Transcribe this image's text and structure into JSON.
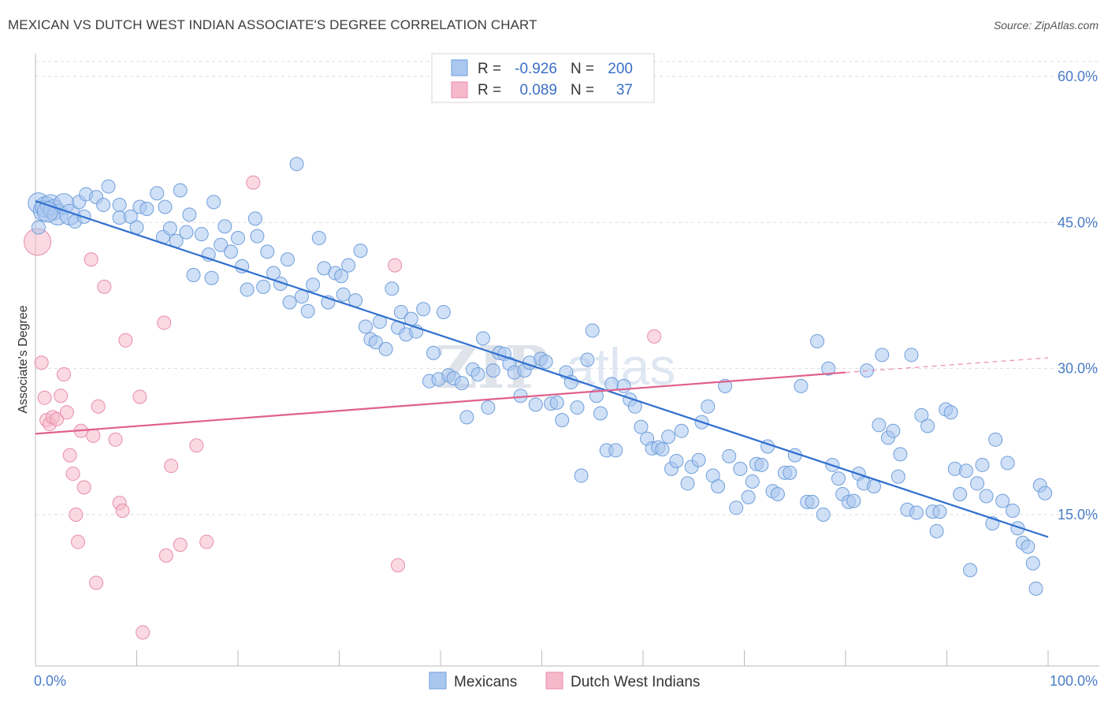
{
  "title": "MEXICAN VS DUTCH WEST INDIAN ASSOCIATE'S DEGREE CORRELATION CHART",
  "source": "Source: ZipAtlas.com",
  "colors": {
    "blue_fill": "#a9c7ef",
    "blue_stroke": "#6f9fdc",
    "blue_line": "#2f6fcf",
    "pink_fill": "#f6b9cb",
    "pink_stroke": "#e98cab",
    "pink_line": "#e0608c",
    "axis_text": "#4a7cc9",
    "grid": "#dddddd"
  },
  "legend_top": {
    "rows": [
      {
        "r_label": "R =",
        "r_value": "-0.926",
        "n_label": "N =",
        "n_value": "200"
      },
      {
        "r_label": "R =",
        "r_value": "0.089",
        "n_label": "N =",
        "n_value": "37"
      }
    ]
  },
  "legend_bottom": [
    "Mexicans",
    "Dutch West Indians"
  ],
  "watermark": {
    "a": "ZIP",
    "b": "atlas"
  },
  "chart_data": {
    "type": "scatter",
    "xlabel": "",
    "ylabel": "Associate's Degree",
    "xlim": [
      0,
      100
    ],
    "ylim": [
      0,
      64
    ],
    "x_tick_labels": [
      "0.0%",
      "100.0%"
    ],
    "y_ticks": [
      15,
      30,
      45,
      60
    ],
    "y_tick_labels": [
      "15.0%",
      "30.0%",
      "45.0%",
      "60.0%"
    ],
    "grid": "horizontal dashed",
    "series": [
      {
        "name": "Mexicans",
        "trend": {
          "x0": 0,
          "y0": 47.2,
          "x1": 100,
          "y1": 12.7
        },
        "points": [
          [
            0.3,
            47.0
          ],
          [
            0.8,
            46.2
          ],
          [
            1.0,
            46.6
          ],
          [
            1.5,
            46.8
          ],
          [
            1.8,
            46.3
          ],
          [
            2.2,
            45.8
          ],
          [
            2.8,
            46.9
          ],
          [
            3.4,
            45.8
          ],
          [
            3.9,
            45.1
          ],
          [
            4.3,
            47.1
          ],
          [
            4.8,
            45.6
          ],
          [
            5.0,
            47.9
          ],
          [
            6.0,
            47.6
          ],
          [
            6.7,
            46.8
          ],
          [
            7.2,
            48.7
          ],
          [
            8.3,
            46.8
          ],
          [
            8.3,
            45.5
          ],
          [
            9.4,
            45.6
          ],
          [
            10.0,
            44.5
          ],
          [
            10.3,
            46.6
          ],
          [
            11.0,
            46.4
          ],
          [
            12.0,
            48.0
          ],
          [
            12.6,
            43.5
          ],
          [
            12.8,
            46.6
          ],
          [
            13.3,
            44.4
          ],
          [
            13.9,
            43.1
          ],
          [
            14.3,
            48.3
          ],
          [
            14.9,
            44.0
          ],
          [
            15.2,
            45.8
          ],
          [
            15.6,
            39.6
          ],
          [
            16.4,
            43.8
          ],
          [
            17.1,
            41.7
          ],
          [
            17.4,
            39.3
          ],
          [
            17.6,
            47.1
          ],
          [
            18.3,
            42.7
          ],
          [
            18.7,
            44.6
          ],
          [
            19.3,
            42.0
          ],
          [
            20.0,
            43.4
          ],
          [
            20.4,
            40.5
          ],
          [
            20.9,
            38.1
          ],
          [
            21.7,
            45.4
          ],
          [
            21.9,
            43.6
          ],
          [
            22.5,
            38.4
          ],
          [
            22.9,
            42.0
          ],
          [
            23.5,
            39.8
          ],
          [
            24.2,
            38.7
          ],
          [
            24.9,
            41.2
          ],
          [
            25.1,
            36.8
          ],
          [
            25.8,
            51.0
          ],
          [
            26.3,
            37.4
          ],
          [
            26.9,
            35.9
          ],
          [
            27.4,
            38.6
          ],
          [
            28.0,
            43.4
          ],
          [
            28.5,
            40.3
          ],
          [
            28.9,
            36.8
          ],
          [
            29.6,
            39.8
          ],
          [
            30.2,
            39.5
          ],
          [
            30.4,
            37.6
          ],
          [
            30.9,
            40.6
          ],
          [
            31.6,
            37.0
          ],
          [
            32.1,
            42.1
          ],
          [
            32.6,
            34.3
          ],
          [
            33.1,
            33.0
          ],
          [
            33.6,
            32.7
          ],
          [
            34.0,
            34.8
          ],
          [
            34.6,
            32.0
          ],
          [
            35.2,
            38.2
          ],
          [
            35.8,
            34.2
          ],
          [
            36.1,
            35.8
          ],
          [
            36.6,
            33.5
          ],
          [
            37.1,
            35.1
          ],
          [
            37.6,
            33.8
          ],
          [
            38.3,
            36.1
          ],
          [
            38.9,
            28.7
          ],
          [
            39.3,
            31.6
          ],
          [
            39.8,
            28.9
          ],
          [
            40.3,
            35.8
          ],
          [
            40.8,
            29.3
          ],
          [
            41.3,
            29.0
          ],
          [
            42.1,
            28.5
          ],
          [
            42.6,
            25.0
          ],
          [
            43.2,
            29.9
          ],
          [
            43.7,
            29.4
          ],
          [
            44.2,
            33.1
          ],
          [
            44.7,
            26.0
          ],
          [
            45.2,
            29.8
          ],
          [
            45.8,
            31.6
          ],
          [
            46.3,
            31.5
          ],
          [
            46.8,
            30.5
          ],
          [
            47.3,
            29.6
          ],
          [
            47.9,
            27.2
          ],
          [
            48.3,
            29.8
          ],
          [
            48.8,
            30.6
          ],
          [
            49.4,
            26.3
          ],
          [
            49.9,
            31.0
          ],
          [
            50.4,
            30.7
          ],
          [
            50.9,
            26.4
          ],
          [
            51.5,
            26.5
          ],
          [
            52.0,
            24.7
          ],
          [
            52.4,
            29.6
          ],
          [
            52.9,
            28.6
          ],
          [
            53.5,
            26.0
          ],
          [
            53.9,
            19.0
          ],
          [
            54.5,
            30.9
          ],
          [
            55.0,
            33.9
          ],
          [
            55.4,
            27.2
          ],
          [
            55.8,
            25.4
          ],
          [
            56.4,
            21.6
          ],
          [
            56.9,
            28.4
          ],
          [
            57.3,
            21.6
          ],
          [
            58.1,
            28.2
          ],
          [
            58.7,
            26.8
          ],
          [
            59.2,
            26.1
          ],
          [
            59.8,
            24.0
          ],
          [
            60.4,
            22.8
          ],
          [
            60.9,
            21.8
          ],
          [
            61.5,
            21.9
          ],
          [
            61.9,
            21.7
          ],
          [
            62.5,
            23.0
          ],
          [
            62.8,
            19.7
          ],
          [
            63.3,
            20.5
          ],
          [
            63.8,
            23.6
          ],
          [
            64.4,
            18.2
          ],
          [
            64.8,
            19.9
          ],
          [
            65.5,
            20.6
          ],
          [
            65.8,
            24.5
          ],
          [
            66.4,
            26.1
          ],
          [
            66.9,
            19.0
          ],
          [
            67.4,
            17.9
          ],
          [
            68.1,
            28.2
          ],
          [
            68.5,
            21.0
          ],
          [
            69.2,
            15.7
          ],
          [
            69.6,
            19.7
          ],
          [
            70.4,
            16.8
          ],
          [
            70.8,
            18.4
          ],
          [
            71.2,
            20.2
          ],
          [
            71.7,
            20.1
          ],
          [
            72.3,
            22.0
          ],
          [
            72.8,
            17.4
          ],
          [
            73.3,
            17.1
          ],
          [
            74.0,
            19.3
          ],
          [
            74.5,
            19.3
          ],
          [
            75.0,
            21.1
          ],
          [
            75.6,
            28.2
          ],
          [
            76.2,
            16.3
          ],
          [
            76.7,
            16.3
          ],
          [
            77.2,
            32.8
          ],
          [
            77.8,
            15.0
          ],
          [
            78.3,
            30.0
          ],
          [
            78.7,
            20.1
          ],
          [
            79.3,
            18.7
          ],
          [
            79.7,
            17.1
          ],
          [
            80.3,
            16.3
          ],
          [
            80.8,
            16.4
          ],
          [
            81.3,
            19.2
          ],
          [
            81.8,
            18.2
          ],
          [
            82.1,
            29.8
          ],
          [
            82.8,
            17.9
          ],
          [
            83.3,
            24.2
          ],
          [
            83.6,
            31.4
          ],
          [
            84.2,
            22.9
          ],
          [
            84.7,
            23.6
          ],
          [
            85.2,
            18.9
          ],
          [
            85.4,
            21.2
          ],
          [
            86.1,
            15.5
          ],
          [
            86.5,
            31.4
          ],
          [
            87.0,
            15.2
          ],
          [
            87.5,
            25.2
          ],
          [
            88.1,
            24.1
          ],
          [
            88.6,
            15.3
          ],
          [
            89.0,
            13.3
          ],
          [
            89.3,
            15.3
          ],
          [
            89.9,
            25.8
          ],
          [
            90.4,
            25.5
          ],
          [
            90.8,
            19.7
          ],
          [
            91.3,
            17.1
          ],
          [
            91.9,
            19.5
          ],
          [
            92.3,
            9.3
          ],
          [
            93.0,
            18.2
          ],
          [
            93.5,
            20.1
          ],
          [
            93.9,
            16.9
          ],
          [
            94.5,
            14.1
          ],
          [
            94.8,
            22.7
          ],
          [
            95.5,
            16.4
          ],
          [
            96.0,
            20.3
          ],
          [
            96.5,
            15.4
          ],
          [
            97.0,
            13.6
          ],
          [
            97.5,
            12.1
          ],
          [
            98.0,
            11.7
          ],
          [
            98.5,
            10.0
          ],
          [
            98.8,
            7.4
          ],
          [
            99.2,
            18.0
          ],
          [
            99.7,
            17.2
          ],
          [
            0.3,
            44.5
          ],
          [
            1.2,
            46.1
          ]
        ]
      },
      {
        "name": "Dutch West Indians",
        "trend": {
          "x0": 0,
          "y0": 23.3,
          "x1": 80,
          "y1": 29.6
        },
        "trend_dashed": {
          "x0": 80,
          "y0": 29.6,
          "x1": 100,
          "y1": 31.1
        },
        "points": [
          [
            0.2,
            43.0
          ],
          [
            0.6,
            30.6
          ],
          [
            0.9,
            27.0
          ],
          [
            1.1,
            24.7
          ],
          [
            1.4,
            24.3
          ],
          [
            1.7,
            25.0
          ],
          [
            2.1,
            24.8
          ],
          [
            2.5,
            27.2
          ],
          [
            2.8,
            29.4
          ],
          [
            3.1,
            25.5
          ],
          [
            3.4,
            21.1
          ],
          [
            3.7,
            19.2
          ],
          [
            4.0,
            15.0
          ],
          [
            4.2,
            12.2
          ],
          [
            4.5,
            23.6
          ],
          [
            4.8,
            17.8
          ],
          [
            5.5,
            41.2
          ],
          [
            5.7,
            23.1
          ],
          [
            6.0,
            8.0
          ],
          [
            6.2,
            26.1
          ],
          [
            6.8,
            38.4
          ],
          [
            7.9,
            22.7
          ],
          [
            8.3,
            16.2
          ],
          [
            8.6,
            15.4
          ],
          [
            8.9,
            32.9
          ],
          [
            10.3,
            27.1
          ],
          [
            10.6,
            2.9
          ],
          [
            12.7,
            34.7
          ],
          [
            12.9,
            10.8
          ],
          [
            13.4,
            20.0
          ],
          [
            14.3,
            11.9
          ],
          [
            15.9,
            22.1
          ],
          [
            16.9,
            12.2
          ],
          [
            21.5,
            49.1
          ],
          [
            35.5,
            40.6
          ],
          [
            35.8,
            9.8
          ],
          [
            61.1,
            33.3
          ]
        ]
      }
    ]
  }
}
